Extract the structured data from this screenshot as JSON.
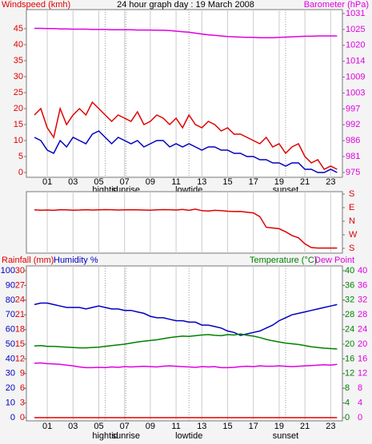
{
  "chart_data": [
    {
      "type": "line",
      "title": "24 hour graph day : 19 March 2008",
      "ylabel": "Windspeed (kmh)",
      "ylabel_color": "#e00000",
      "y2label": "Barometer (hPa)",
      "y2label_color": "#e000e0",
      "x": [
        0,
        0.5,
        1,
        1.5,
        2,
        2.5,
        3,
        3.5,
        4,
        4.5,
        5,
        5.5,
        6,
        6.5,
        7,
        7.5,
        8,
        8.5,
        9,
        9.5,
        10,
        10.5,
        11,
        11.5,
        12,
        12.5,
        13,
        13.5,
        14,
        14.5,
        15,
        15.5,
        16,
        16.5,
        17,
        17.5,
        18,
        18.5,
        19,
        19.5,
        20,
        20.5,
        21,
        21.5,
        22,
        22.5,
        23,
        23.5
      ],
      "xlim": [
        -0.62,
        23.91
      ],
      "xticks": [
        {
          "value": 1,
          "label": "01"
        },
        {
          "value": 3,
          "label": "03"
        },
        {
          "value": 5,
          "label": "05"
        },
        {
          "value": 7,
          "label": "07"
        },
        {
          "value": 9,
          "label": "09"
        },
        {
          "value": 11,
          "label": "11"
        },
        {
          "value": 13,
          "label": "13"
        },
        {
          "value": 15,
          "label": "15"
        },
        {
          "value": 17,
          "label": "17"
        },
        {
          "value": 19,
          "label": "19"
        },
        {
          "value": 21,
          "label": "21"
        },
        {
          "value": 23,
          "label": "23"
        }
      ],
      "events": [
        {
          "label": "hightid",
          "x": 5.5
        },
        {
          "label": "sunrise",
          "x": 7.1
        },
        {
          "label": "lowtide",
          "x": 12
        },
        {
          "label": "sunset",
          "x": 19.5
        }
      ],
      "grid": true,
      "ylim": [
        -1.5,
        51
      ],
      "yticks": [
        0,
        5,
        10,
        15,
        20,
        25,
        30,
        35,
        40,
        45
      ],
      "y2lim": [
        973.3,
        1032.4
      ],
      "y2ticks": [
        975,
        {
          "value": 980.6,
          "label": "981"
        },
        {
          "value": 986.2,
          "label": "986"
        },
        {
          "value": 991.8,
          "label": "992"
        },
        {
          "value": 997.4,
          "label": "997"
        },
        1003,
        {
          "value": 1008.6,
          "label": "1009"
        },
        {
          "value": 1014.2,
          "label": "1014"
        },
        {
          "value": 1019.8,
          "label": "1020"
        },
        {
          "value": 1025.4,
          "label": "1025"
        },
        1031
      ],
      "series": [
        {
          "color": "#e00000",
          "values": [
            18,
            20,
            14,
            11,
            20,
            15,
            18,
            20,
            18,
            22,
            20,
            18,
            16,
            18,
            17,
            16,
            19,
            15,
            16,
            18,
            17,
            15,
            17,
            14,
            18,
            15,
            14,
            16,
            15,
            13,
            14,
            12,
            12,
            11,
            10,
            9,
            11,
            8,
            9,
            6,
            8,
            9,
            5,
            3,
            4,
            1,
            2,
            1
          ]
        },
        {
          "color": "#0000c0",
          "values": [
            11,
            10,
            7,
            6,
            10,
            8,
            11,
            10,
            9,
            12,
            13,
            11,
            9,
            11,
            10,
            9,
            10,
            8,
            9,
            10,
            10,
            8,
            9,
            8,
            9,
            8,
            7,
            8,
            8,
            7,
            7,
            6,
            6,
            5,
            5,
            4,
            4,
            3,
            3,
            2,
            3,
            3,
            1,
            1,
            0,
            0,
            1,
            0
          ]
        },
        {
          "color": "#e000e0",
          "axis": "y2",
          "values": [
            1025.8,
            1025.8,
            1025.7,
            1025.7,
            1025.6,
            1025.6,
            1025.5,
            1025.5,
            1025.5,
            1025.4,
            1025.4,
            1025.4,
            1025.3,
            1025.3,
            1025.3,
            1025.3,
            1025.2,
            1025.2,
            1025.2,
            1025.1,
            1025.1,
            1025.0,
            1024.8,
            1024.6,
            1024.4,
            1024.1,
            1023.8,
            1023.5,
            1023.3,
            1023.1,
            1022.9,
            1022.8,
            1022.7,
            1022.6,
            1022.6,
            1022.5,
            1022.5,
            1022.5,
            1022.6,
            1022.7,
            1022.8,
            1022.9,
            1023.0,
            1023.0,
            1023.1,
            1023.1,
            1023.1,
            1023.1
          ]
        }
      ]
    },
    {
      "type": "line",
      "x": [
        0,
        0.5,
        1,
        1.5,
        2,
        2.5,
        3,
        3.5,
        4,
        4.5,
        5,
        5.5,
        6,
        6.5,
        7,
        7.5,
        8,
        8.5,
        9,
        9.5,
        10,
        10.5,
        11,
        11.5,
        12,
        12.5,
        13,
        13.5,
        14,
        14.5,
        15,
        15.5,
        16,
        16.5,
        17,
        17.5,
        18,
        18.5,
        19,
        19.5,
        20,
        20.5,
        21,
        21.5,
        22,
        22.5,
        23,
        23.5
      ],
      "xlim": [
        -0.62,
        23.91
      ],
      "grid": true,
      "y2lim": [
        -211.8,
        195.9
      ],
      "y2ticks": [
        {
          "value": 180,
          "label": "S"
        },
        {
          "value": 90,
          "label": "E"
        },
        {
          "value": 0,
          "label": "N"
        },
        {
          "value": -90,
          "label": "W"
        },
        {
          "value": -180,
          "label": "S"
        }
      ],
      "y2tick_color": "#e00000",
      "series": [
        {
          "color": "#e00000",
          "axis": "y2",
          "values": [
            75,
            73,
            74,
            72,
            76,
            75,
            73,
            74,
            76,
            74,
            75,
            77,
            76,
            74,
            75,
            76,
            75,
            74,
            73,
            75,
            77,
            76,
            74,
            78,
            72,
            80,
            70,
            68,
            72,
            70,
            66,
            64,
            65,
            60,
            55,
            30,
            -40,
            -45,
            -50,
            -70,
            -95,
            -110,
            -150,
            -175,
            -178,
            -178,
            -178,
            -178
          ]
        }
      ]
    },
    {
      "type": "line",
      "ylabel": "Rainfall (mm)",
      "ylabel_color": "#e00000",
      "y2label": "Humidity %",
      "y2label_color": "#0000c0",
      "y3label": "Temperature (°C)",
      "y3label_color": "#008000",
      "y4label": "Dew Point",
      "y4label_color": "#e000e0",
      "x": [
        0,
        0.5,
        1,
        1.5,
        2,
        2.5,
        3,
        3.5,
        4,
        4.5,
        5,
        5.5,
        6,
        6.5,
        7,
        7.5,
        8,
        8.5,
        9,
        9.5,
        10,
        10.5,
        11,
        11.5,
        12,
        12.5,
        13,
        13.5,
        14,
        14.5,
        15,
        15.5,
        16,
        16.5,
        17,
        17.5,
        18,
        18.5,
        19,
        19.5,
        20,
        20.5,
        21,
        21.5,
        22,
        22.5,
        23,
        23.5
      ],
      "xlim": [
        -0.62,
        23.91
      ],
      "xticks": [
        {
          "value": 1,
          "label": "01"
        },
        {
          "value": 3,
          "label": "03"
        },
        {
          "value": 5,
          "label": "05"
        },
        {
          "value": 7,
          "label": "07"
        },
        {
          "value": 9,
          "label": "09"
        },
        {
          "value": 11,
          "label": "11"
        },
        {
          "value": 13,
          "label": "13"
        },
        {
          "value": 15,
          "label": "15"
        },
        {
          "value": 17,
          "label": "17"
        },
        {
          "value": 19,
          "label": "19"
        },
        {
          "value": 21,
          "label": "21"
        },
        {
          "value": 23,
          "label": "23"
        }
      ],
      "events": [
        {
          "label": "hightid",
          "x": 5.5
        },
        {
          "label": "sunrise",
          "x": 7.1
        },
        {
          "label": "lowtide",
          "x": 12
        },
        {
          "label": "sunset",
          "x": 19.5
        }
      ],
      "grid": true,
      "ylim": [
        -0.65,
        30.98
      ],
      "yticks": [
        0,
        3,
        6,
        9,
        12,
        15,
        18,
        21,
        24,
        27,
        30
      ],
      "y2lim": [
        -2.2,
        103.3
      ],
      "y2ticks": [
        0,
        10,
        20,
        30,
        40,
        50,
        60,
        70,
        80,
        90,
        100
      ],
      "y3lim": [
        -0.87,
        41.3
      ],
      "y3ticks": [
        0,
        4,
        8,
        12,
        16,
        20,
        24,
        28,
        32,
        36,
        40
      ],
      "y4lim": [
        -0.87,
        41.3
      ],
      "y4ticks": [
        0,
        4,
        8,
        12,
        16,
        20,
        24,
        28,
        32,
        36,
        40
      ],
      "series": [
        {
          "color": "#e00000",
          "values": [
            0,
            0,
            0,
            0,
            0,
            0,
            0,
            0,
            0,
            0,
            0,
            0,
            0,
            0,
            0,
            0,
            0,
            0,
            0,
            0,
            0,
            0,
            0,
            0,
            0,
            0,
            0,
            0,
            0,
            0,
            0,
            0,
            0,
            0,
            0,
            0,
            0,
            0,
            0,
            0,
            0,
            0,
            0,
            0,
            0,
            0,
            0,
            0
          ]
        },
        {
          "color": "#0000c0",
          "axis": "y2",
          "values": [
            77,
            78,
            78,
            77,
            76,
            75,
            75,
            75,
            74,
            75,
            76,
            75,
            74,
            74,
            73,
            73,
            72,
            71,
            69,
            68,
            68,
            67,
            66,
            66,
            65,
            65,
            63,
            63,
            62,
            61,
            59,
            58,
            56,
            57,
            58,
            59,
            61,
            63,
            66,
            68,
            70,
            71,
            72,
            73,
            74,
            75,
            76,
            77
          ]
        },
        {
          "color": "#008000",
          "axis": "y3",
          "values": [
            19.5,
            19.6,
            19.4,
            19.4,
            19.3,
            19.2,
            19.1,
            19.0,
            19.0,
            19.1,
            19.2,
            19.4,
            19.6,
            19.8,
            20.0,
            20.3,
            20.6,
            20.8,
            21.0,
            21.2,
            21.5,
            21.8,
            22.0,
            22.2,
            22.1,
            22.3,
            22.5,
            22.6,
            22.4,
            22.3,
            22.6,
            22.5,
            22.8,
            22.4,
            22.2,
            21.8,
            21.3,
            20.9,
            20.6,
            20.3,
            20.1,
            19.9,
            19.6,
            19.3,
            19.1,
            18.9,
            18.8,
            18.7
          ]
        },
        {
          "color": "#e000e0",
          "axis": "y4",
          "values": [
            14.8,
            14.9,
            14.7,
            14.6,
            14.5,
            14.3,
            14.1,
            13.8,
            13.6,
            13.6,
            13.7,
            13.6,
            13.8,
            13.7,
            13.9,
            13.8,
            13.9,
            14.0,
            13.9,
            13.8,
            14.0,
            14.1,
            14.0,
            13.9,
            13.8,
            13.7,
            13.9,
            13.8,
            13.9,
            13.6,
            13.6,
            13.7,
            13.9,
            14.0,
            13.9,
            14.1,
            14.0,
            14.0,
            14.1,
            14.0,
            13.9,
            14.0,
            14.1,
            14.2,
            14.3,
            14.4,
            14.3,
            14.5
          ]
        }
      ]
    }
  ]
}
